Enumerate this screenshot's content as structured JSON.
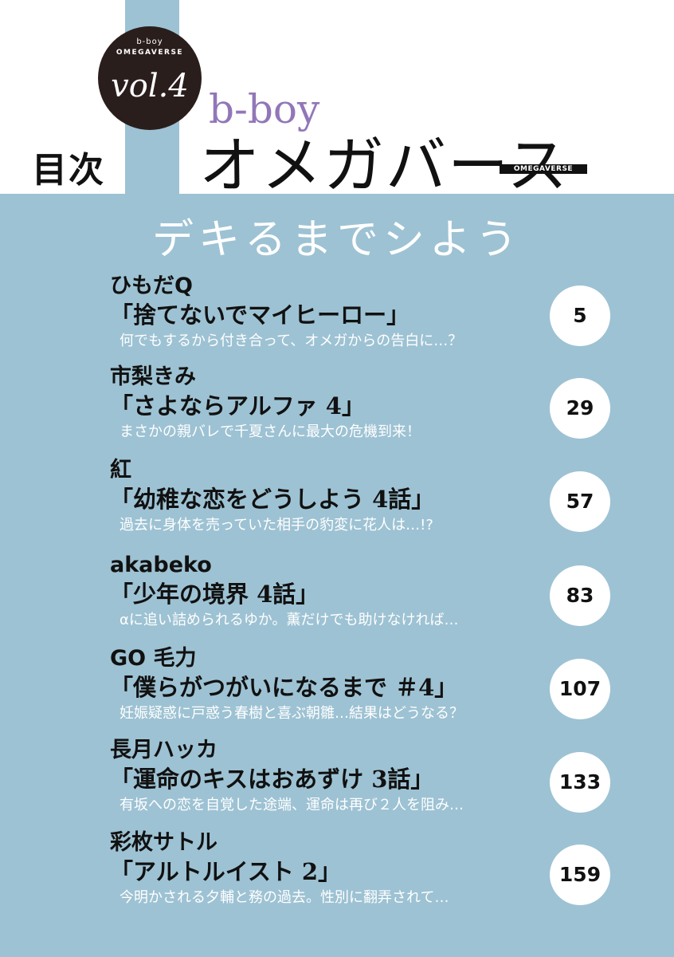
{
  "badge": {
    "line1": "b-boy",
    "line2": "OMEGAVERSE",
    "volume": "vol.4"
  },
  "header": {
    "toc_label": "目次",
    "brand": "b-boy",
    "title": "オメガバース",
    "tag": "OMEGAVERSE"
  },
  "subtitle": "デキるまでシよう",
  "entries": [
    {
      "author": "ひもだQ",
      "title": "「捨てないでマイヒーロー」",
      "description": "何でもするから付き合って、オメガからの告白に…？",
      "page": "5"
    },
    {
      "author": "市梨きみ",
      "title": "「さよならアルファ 4」",
      "description": "まさかの親バレで千夏さんに最大の危機到来！",
      "page": "29"
    },
    {
      "author": "紅",
      "title": "「幼稚な恋をどうしよう 4話」",
      "description": "過去に身体を売っていた相手の豹変に花人は…!?",
      "page": "57"
    },
    {
      "author": "akabeko",
      "title": "「少年の境界 4話」",
      "description": "αに追い詰められるゆか。薫だけでも助けなければ…",
      "page": "83"
    },
    {
      "author": "GO 毛力",
      "title": "「僕らがつがいになるまで ＃4」",
      "description": "妊娠疑惑に戸惑う春樹と喜ぶ朝雛…結果はどうなる？",
      "page": "107"
    },
    {
      "author": "長月ハッカ",
      "title": "「運命のキスはおあずけ 3話」",
      "description": "有坂への恋を自覚した途端、運命は再び２人を阻み…",
      "page": "133"
    },
    {
      "author": "彩枚サトル",
      "title": "「アルトルイスト 2」",
      "description": "今明かされる夕輔と務の過去。性別に翻弄されて…",
      "page": "159"
    }
  ],
  "colors": {
    "background": "#9dc2d3",
    "brand_purple": "#9177b8",
    "badge": "#2a1e1c"
  }
}
